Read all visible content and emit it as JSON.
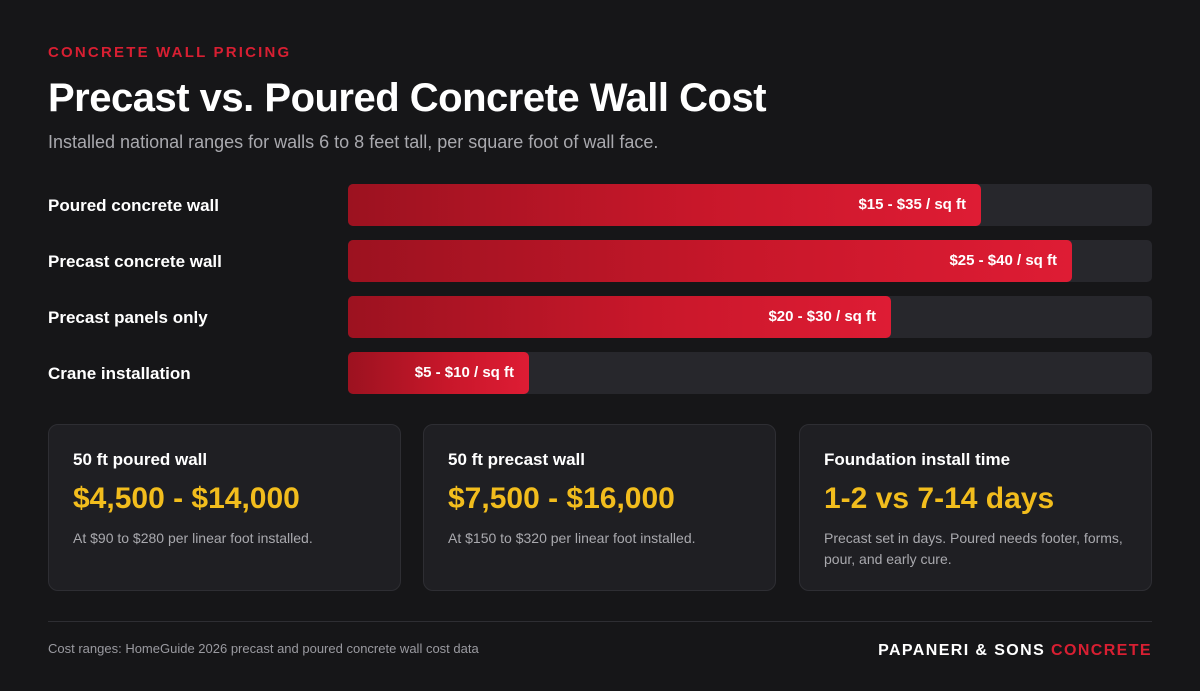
{
  "header": {
    "eyebrow": "CONCRETE WALL PRICING",
    "title": "Precast vs. Poured Concrete Wall Cost",
    "subtitle": "Installed national ranges for walls 6 to 8 feet tall, per square foot of wall face."
  },
  "chart_data": {
    "type": "bar",
    "orientation": "horizontal",
    "unit": "$ / sq ft",
    "xlim": [
      0,
      44.44
    ],
    "grid": false,
    "categories": [
      "Poured concrete wall",
      "Precast concrete wall",
      "Precast panels only",
      "Crane installation"
    ],
    "ranges": [
      [
        15,
        35
      ],
      [
        25,
        40
      ],
      [
        20,
        30
      ],
      [
        5,
        10
      ]
    ],
    "data_labels": [
      "$15 - $35 / sq ft",
      "$25 - $40 / sq ft",
      "$20 - $30 / sq ft",
      "$5 - $10 / sq ft"
    ]
  },
  "cards": [
    {
      "title": "50 ft poured wall",
      "value": "$4,500 - $14,000",
      "note": "At $90 to $280 per linear foot installed."
    },
    {
      "title": "50 ft precast wall",
      "value": "$7,500 - $16,000",
      "note": "At $150 to $320 per linear foot installed."
    },
    {
      "title": "Foundation install time",
      "value": "1-2 vs 7-14 days",
      "note": "Precast set in days. Poured needs footer, forms, pour, and early cure."
    }
  ],
  "footer": {
    "source": "Cost ranges: HomeGuide 2026 precast and poured concrete wall cost data",
    "brand_main": "PAPANERI & SONS",
    "brand_accent": "CONCRETE"
  },
  "colors": {
    "accent": "#d81f32",
    "bar_start": "#9c1220",
    "bar_end": "#de1c34",
    "highlight": "#f2bd1d",
    "background": "#161618"
  }
}
